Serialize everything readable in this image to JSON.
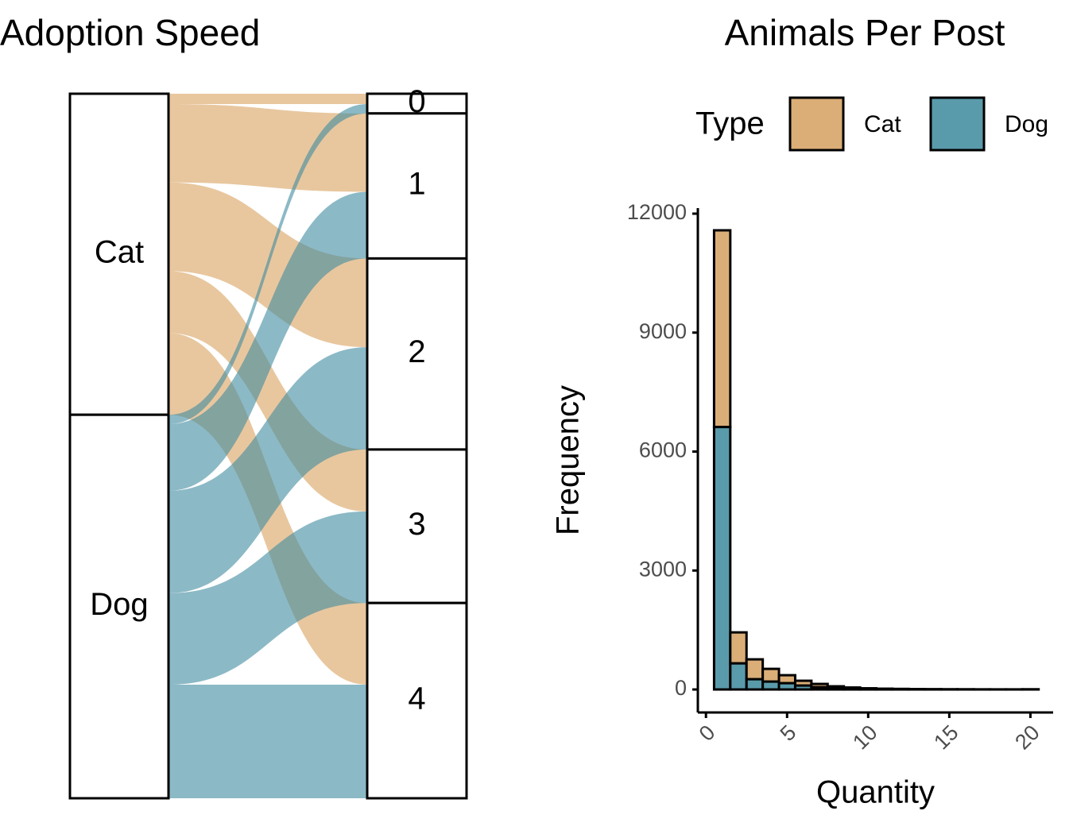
{
  "chart_data": [
    {
      "type": "alluvial",
      "title": "Adoption Speed",
      "categories": [
        "0",
        "1",
        "2",
        "3",
        "4"
      ],
      "series": [
        {
          "name": "Cat",
          "color": "#d8a25f",
          "values": [
            220,
            1670,
            1890,
            1320,
            1740
          ]
        },
        {
          "name": "Dog",
          "color": "#3f8aa0",
          "values": [
            200,
            1420,
            2180,
            1950,
            2420
          ]
        }
      ]
    },
    {
      "type": "histogram",
      "title": "Animals Per Post",
      "xlabel": "Quantity",
      "ylabel": "Frequency",
      "legend_title": "Type",
      "legend": "top",
      "stacked": true,
      "bins": [
        0.5,
        1.5,
        2.5,
        3.5,
        4.5,
        5.5,
        6.5,
        7.5,
        8.5,
        9.5,
        10.5,
        11.5,
        12.5,
        13.5,
        14.5,
        15.5,
        16.5,
        17.5,
        18.5,
        19.5,
        20.5
      ],
      "series": [
        {
          "name": "Cat",
          "color": "#dbae78",
          "values": [
            4960,
            780,
            500,
            320,
            200,
            120,
            80,
            50,
            30,
            20,
            10,
            10,
            6,
            5,
            4,
            3,
            3,
            2,
            2,
            3
          ]
        },
        {
          "name": "Dog",
          "color": "#5a9bab",
          "values": [
            6620,
            660,
            260,
            200,
            160,
            100,
            60,
            30,
            20,
            10,
            10,
            5,
            4,
            3,
            2,
            2,
            1,
            1,
            1,
            2
          ]
        }
      ],
      "xlim": [
        -0.5,
        21.4
      ],
      "ylim": [
        -580,
        12140
      ],
      "xticks": [
        0,
        5,
        10,
        15,
        20
      ],
      "yticks": [
        0,
        3000,
        6000,
        9000,
        12000
      ]
    }
  ]
}
